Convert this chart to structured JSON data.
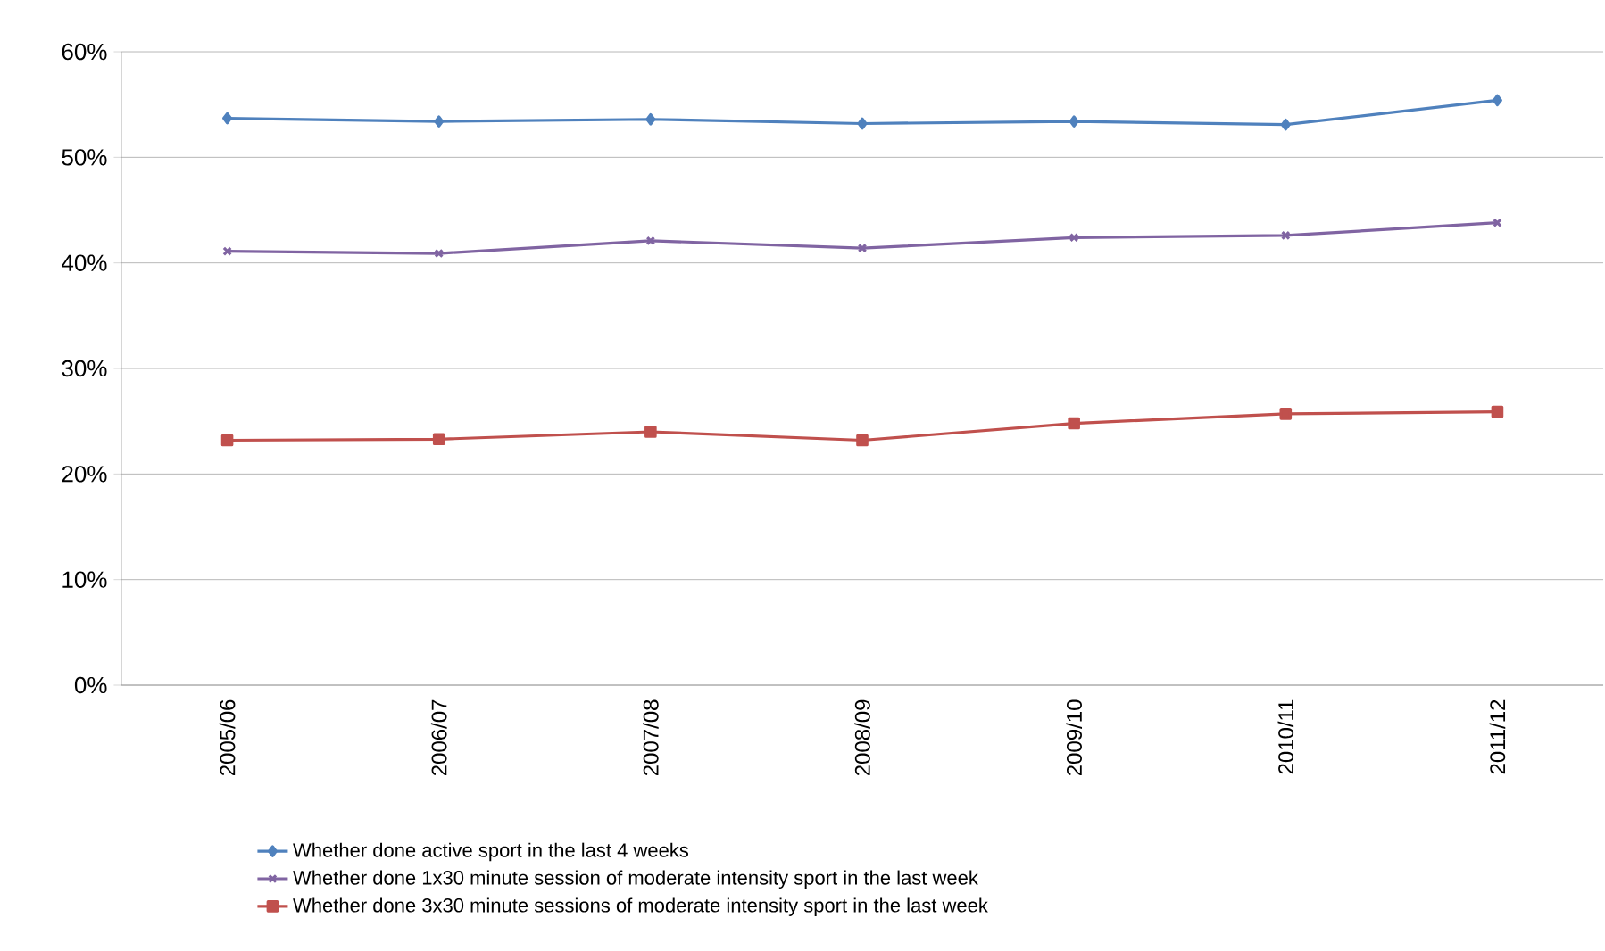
{
  "chart_data": {
    "type": "line",
    "categories": [
      "2005/06",
      "2006/07",
      "2007/08",
      "2008/09",
      "2009/10",
      "2010/11",
      "2011/12"
    ],
    "series": [
      {
        "name": "Whether done active sport in the last 4 weeks",
        "color": "#4f81bd",
        "marker": "diamond",
        "values": [
          53.7,
          53.4,
          53.6,
          53.2,
          53.4,
          53.1,
          55.4
        ]
      },
      {
        "name": "Whether done 1x30 minute session of moderate intensity sport in the last week",
        "color": "#8064a2",
        "marker": "cross",
        "values": [
          41.1,
          40.9,
          42.1,
          41.4,
          42.4,
          42.6,
          43.8
        ]
      },
      {
        "name": "Whether done 3x30 minute sessions of moderate intensity sport in the last week",
        "color": "#c0504d",
        "marker": "square",
        "values": [
          23.2,
          23.3,
          24.0,
          23.2,
          24.8,
          25.7,
          25.9
        ]
      }
    ],
    "ylim": [
      0,
      60
    ],
    "yticks": [
      {
        "value": 0,
        "label": "0%"
      },
      {
        "value": 10,
        "label": "10%"
      },
      {
        "value": 20,
        "label": "20%"
      },
      {
        "value": 30,
        "label": "30%"
      },
      {
        "value": 40,
        "label": "40%"
      },
      {
        "value": 50,
        "label": "50%"
      },
      {
        "value": 60,
        "label": "60%"
      }
    ],
    "grid": "y",
    "legend": "bottom",
    "line_style": "solid"
  }
}
